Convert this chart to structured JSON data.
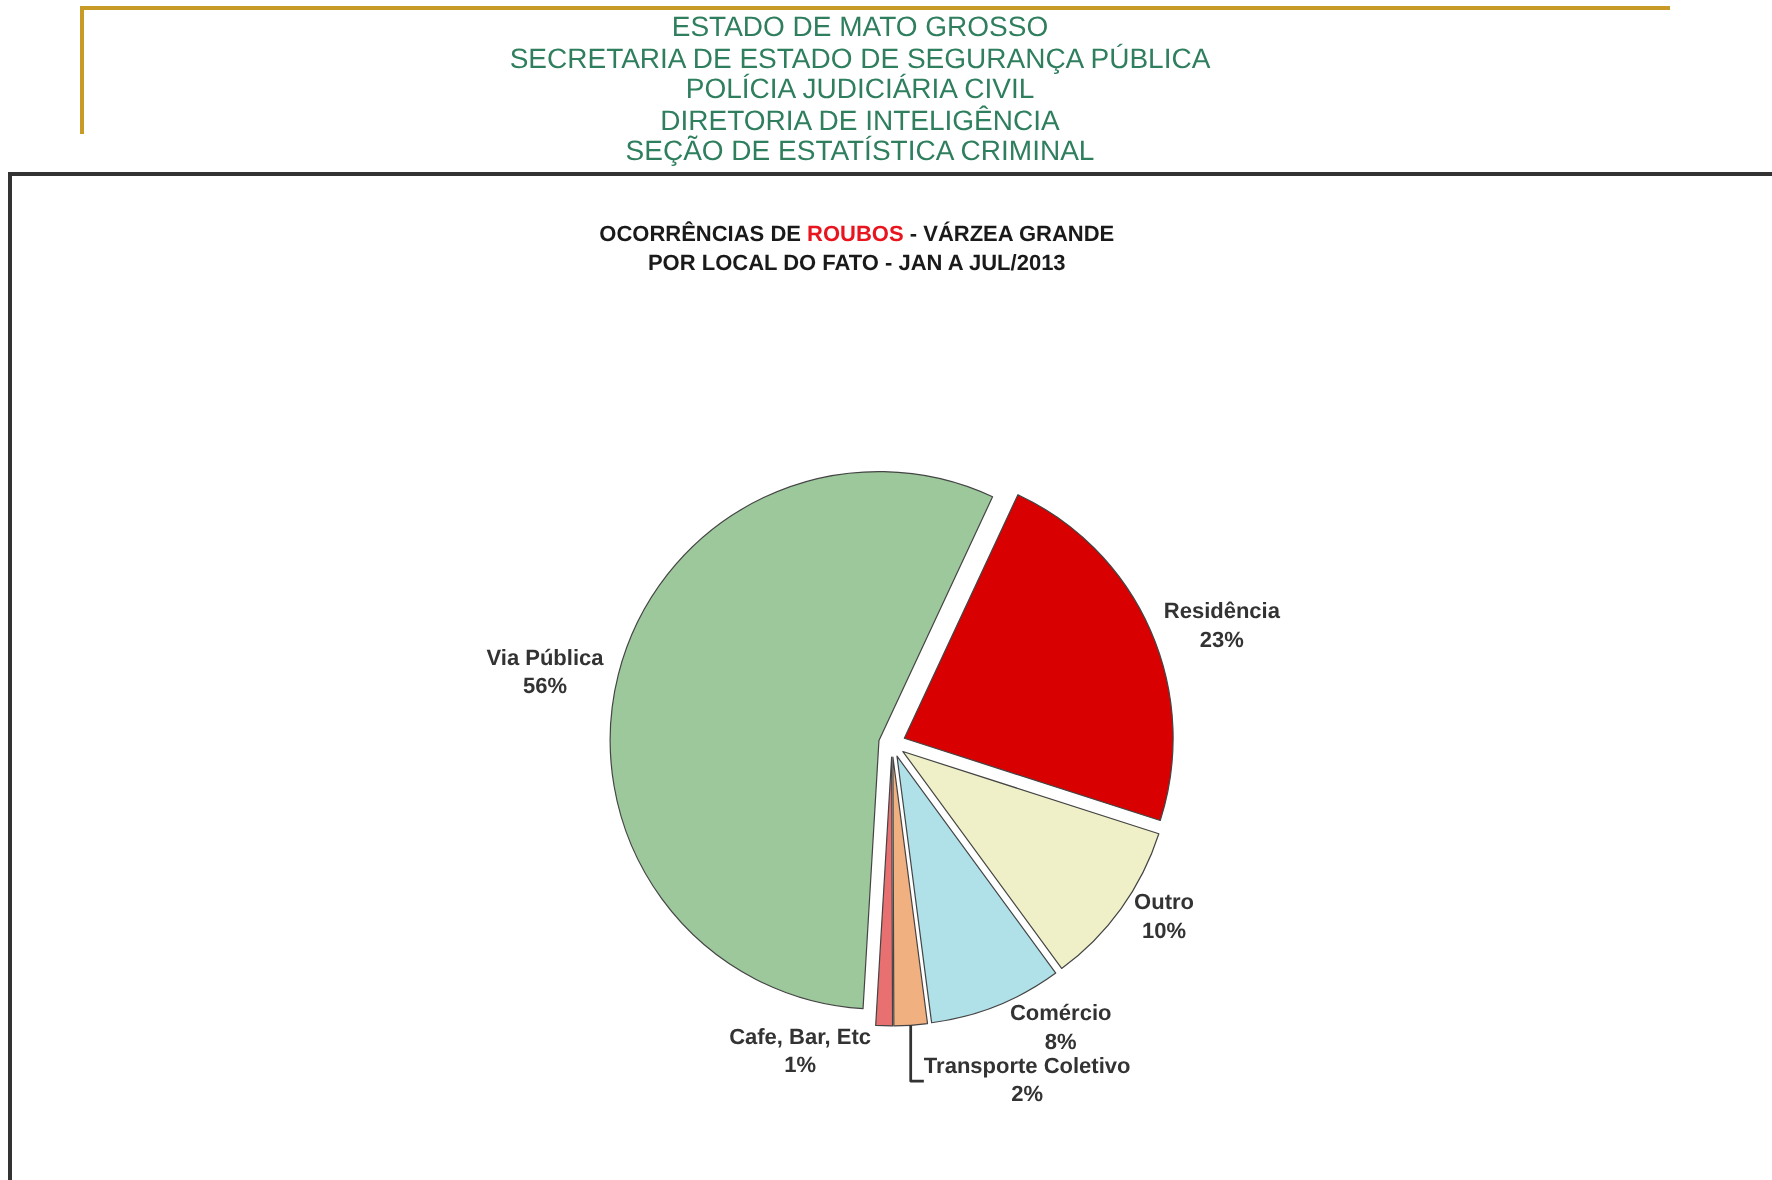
{
  "chart_data": {
    "type": "pie",
    "title": "OCORRÊNCIAS DE ROUBOS - VÁRZEA GRANDE\nPOR LOCAL DO FATO - JAN A JUL/2013",
    "annotations": [
      "ESTADO DE MATO GROSSO",
      "SECRETARIA DE ESTADO DE SEGURANÇA PÚBLICA",
      "POLÍCIA JUDICIÁRIA CIVIL",
      "DIRETORIA DE INTELIGÊNCIA",
      "SEÇÃO DE ESTATÍSTICA CRIMINAL"
    ],
    "categories": [
      "Residência",
      "Outro",
      "Comércio",
      "Transporte Coletivo",
      "Cafe, Bar, Etc",
      "Via Pública"
    ],
    "values": [
      23,
      10,
      8,
      2,
      1,
      56
    ],
    "value_labels": [
      "23%",
      "10%",
      "8%",
      "2%",
      "1%",
      "56%"
    ],
    "colors": [
      "#d80000",
      "#f0f0c8",
      "#b0e0e8",
      "#f0b080",
      "#e87070",
      "#9cc89c"
    ],
    "legend": false
  }
}
